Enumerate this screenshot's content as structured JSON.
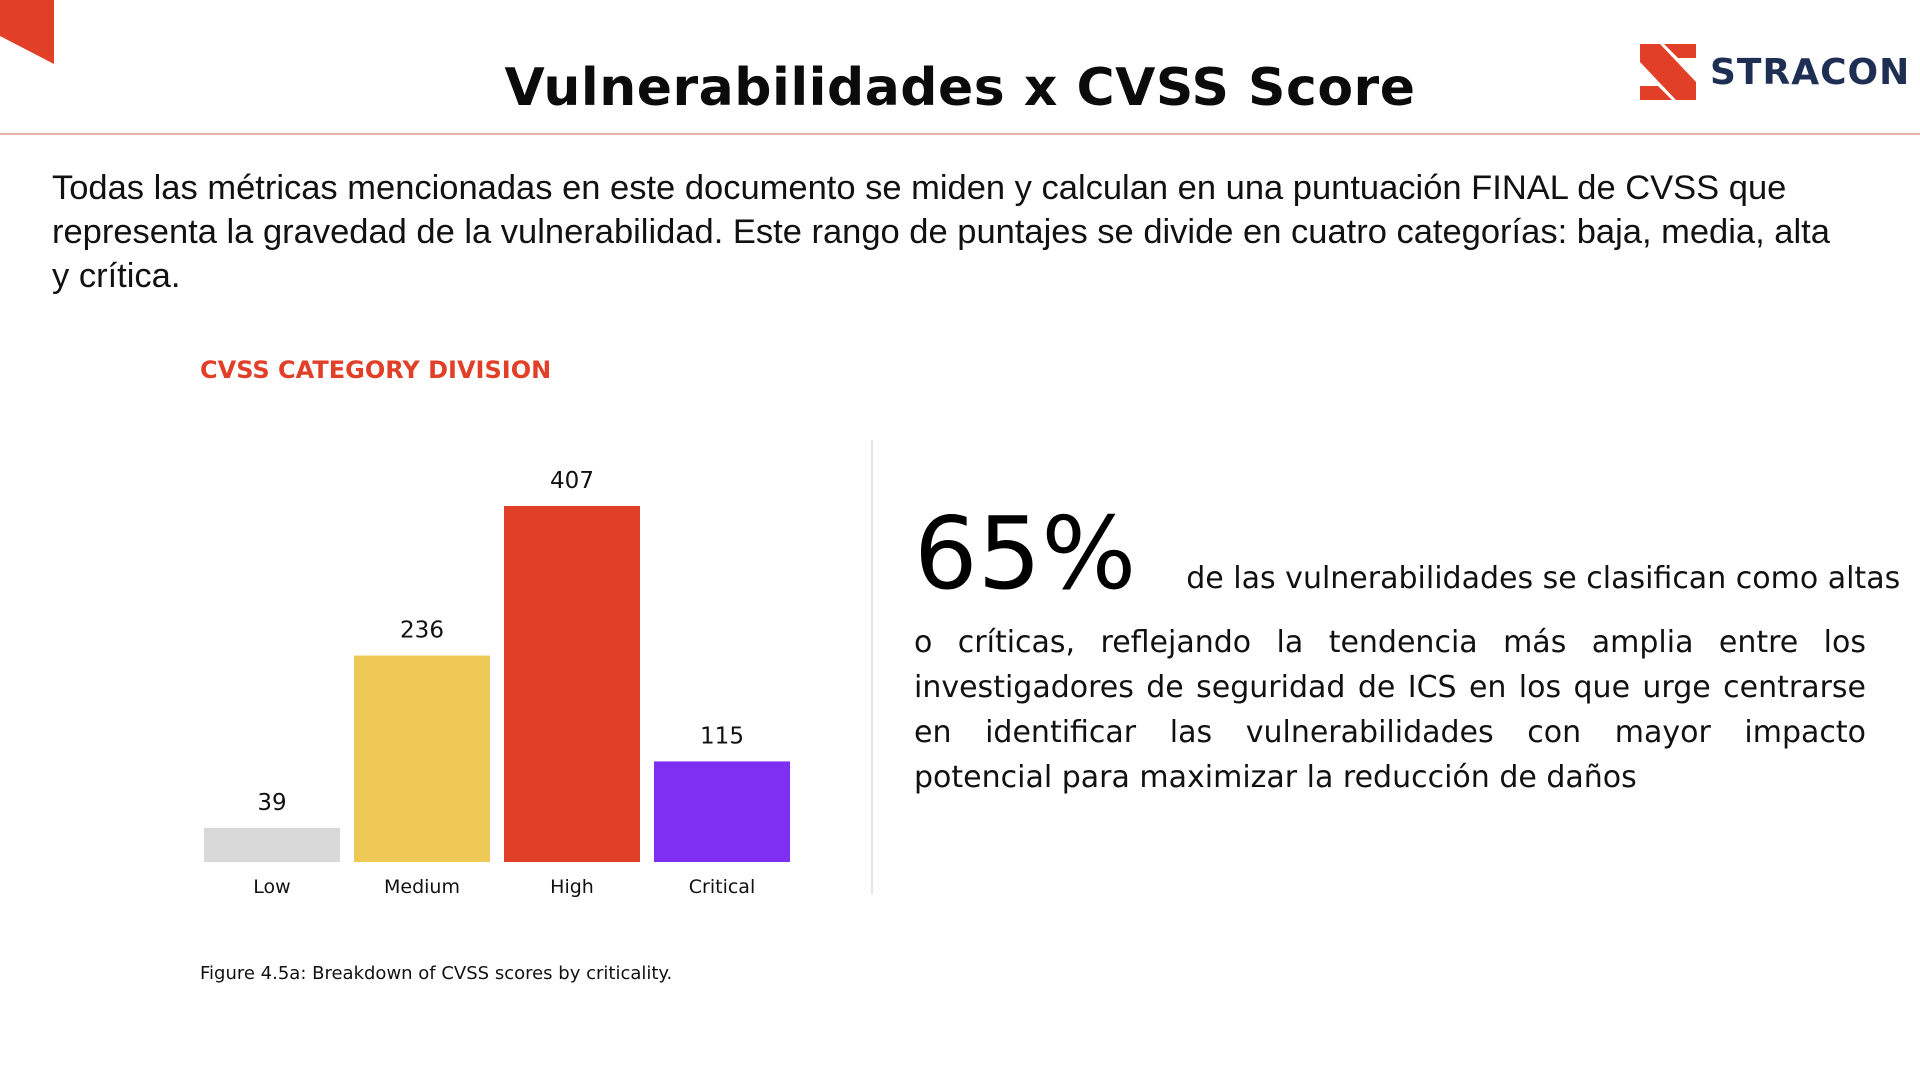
{
  "header": {
    "title": "Vulnerabilidades x CVSS Score",
    "logo_text": "STRACON",
    "logo_icon": "stracon-s-logo-icon",
    "corner_icon": "corner-triangle-icon"
  },
  "intro": {
    "text": "Todas las métricas mencionadas en este documento se miden y calculan en una puntuación FINAL de CVSS que representa la gravedad de la vulnerabilidad. Este rango de puntajes se divide en cuatro categorías: baja, media, alta y crítica."
  },
  "chart_data": {
    "type": "bar",
    "title": "CVSS CATEGORY DIVISION",
    "caption": "Figure 4.5a: Breakdown of CVSS scores by criticality.",
    "categories": [
      "Low",
      "Medium",
      "High",
      "Critical"
    ],
    "values": [
      39,
      236,
      407,
      115
    ],
    "data_labels": [
      "39",
      "236",
      "407",
      "115"
    ],
    "colors": [
      "#d9d9d9",
      "#eec955",
      "#e13f28",
      "#7f2ff2"
    ],
    "xlabel": "",
    "ylabel": "",
    "ylim": [
      0,
      407
    ],
    "grid": false,
    "legend": "none"
  },
  "stat": {
    "value": "65%",
    "lead": "de las vulnerabilidades se clasifican como altas",
    "body": "o críticas, reflejando la tendencia más amplia entre los investigadores de seguridad de ICS en los que urge centrarse en identificar las vulnerabilidades con mayor impacto potencial para maximizar la reducción de daños"
  },
  "colors": {
    "accent": "#e13f28",
    "logo_text": "#1e2f53",
    "rule": "#e6b6ab",
    "divider": "#e4e4e4"
  }
}
